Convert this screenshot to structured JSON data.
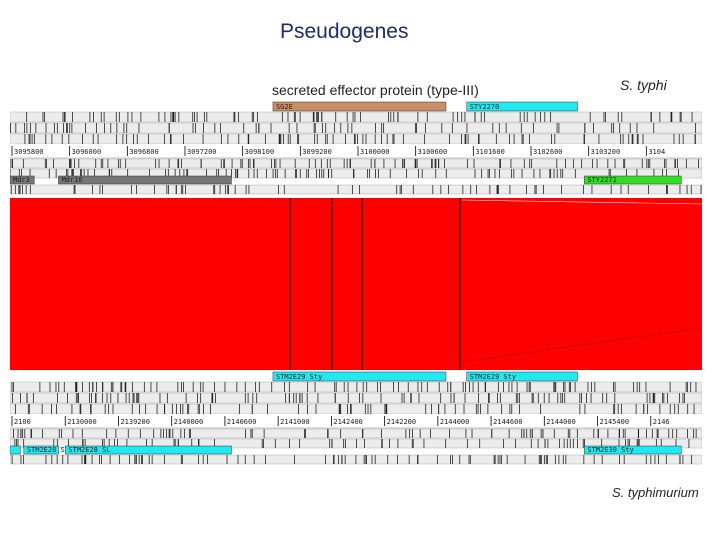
{
  "title": "Pseudogenes",
  "feature_label": "secreted effector protein (type-III)",
  "genome_top": "S. typhi",
  "genome_bottom": "S. typhimurium",
  "colors": {
    "match": "#ff0000",
    "feature_brown": "#c8906a",
    "feature_cyan": "#22e8f0",
    "feature_gray": "#777777",
    "feature_green": "#33dd22"
  },
  "top_genome": {
    "features_upper": [
      {
        "label": "SG2E",
        "start": 0.38,
        "end": 0.63,
        "color": "brown"
      },
      {
        "label": "STY2270",
        "start": 0.66,
        "end": 0.82,
        "color": "cyan"
      }
    ],
    "ticks": [
      "3095800",
      "3096000",
      "3096800",
      "3097200",
      "3098100",
      "3099200",
      "3100000",
      "3100600",
      "3101600",
      "3102600",
      "3103200",
      "3104"
    ],
    "features_lower": [
      {
        "label": "Mdr3",
        "start": 0.0,
        "end": 0.035,
        "color": "gray"
      },
      {
        "label": "Mdr16",
        "start": 0.07,
        "end": 0.32,
        "color": "gray"
      },
      {
        "label": "STY2271",
        "start": 0.83,
        "end": 0.97,
        "color": "green"
      }
    ]
  },
  "bottom_genome": {
    "features_upper": [
      {
        "label": "STM2E29 Sty",
        "start": 0.38,
        "end": 0.63,
        "color": "cyan"
      },
      {
        "label": "STM2E29 Sty",
        "start": 0.66,
        "end": 0.82,
        "color": "cyan"
      }
    ],
    "ticks": [
      "2100",
      "2130000",
      "2139200",
      "2140000",
      "2140600",
      "2141000",
      "2142400",
      "2142200",
      "2144000",
      "2144600",
      "2144000",
      "2145400",
      "2146"
    ],
    "features_lower": [
      {
        "label": "",
        "start": 0.0,
        "end": 0.015,
        "color": "cyan"
      },
      {
        "label": "STM2E28 SL",
        "start": 0.02,
        "end": 0.07,
        "color": "cyan"
      },
      {
        "label": "STM2E28 SL",
        "start": 0.08,
        "end": 0.32,
        "color": "cyan"
      },
      {
        "label": "STM2E30 Sty",
        "start": 0.83,
        "end": 0.97,
        "color": "cyan"
      }
    ]
  }
}
